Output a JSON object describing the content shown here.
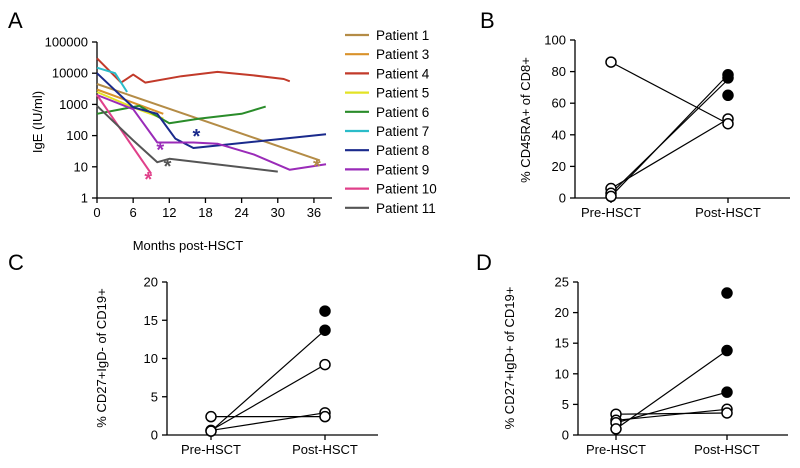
{
  "chart_data": [
    {
      "panel": "A",
      "type": "line",
      "xlabel": "Months post-HSCT",
      "ylabel": "IgE (IU/ml)",
      "yscale": "log",
      "xlim": [
        0,
        39
      ],
      "ylim": [
        1,
        100000
      ],
      "xticks": [
        "0",
        "6",
        "12",
        "18",
        "24",
        "30",
        "36"
      ],
      "yticks": [
        "1",
        "10",
        "100",
        "1000",
        "10000",
        "100000"
      ],
      "legend": "right",
      "series": [
        {
          "name": "Patient 1",
          "color": "#b48c46",
          "x": [
            0,
            37
          ],
          "y": [
            4500,
            16
          ]
        },
        {
          "name": "Patient 3",
          "color": "#d9922b",
          "x": [
            0,
            11
          ],
          "y": [
            3000,
            500
          ]
        },
        {
          "name": "Patient 4",
          "color": "#c23a2a",
          "x": [
            0,
            4,
            6,
            8,
            14,
            20,
            26,
            31,
            32
          ],
          "y": [
            30000,
            5000,
            9000,
            5000,
            8000,
            11000,
            8500,
            6500,
            5500
          ]
        },
        {
          "name": "Patient 5",
          "color": "#e3e325",
          "x": [
            0,
            6,
            11
          ],
          "y": [
            2500,
            800,
            350
          ]
        },
        {
          "name": "Patient 6",
          "color": "#2a8c2a",
          "x": [
            0,
            7,
            12,
            17,
            24,
            28
          ],
          "y": [
            500,
            900,
            250,
            350,
            500,
            850
          ]
        },
        {
          "name": "Patient 7",
          "color": "#2bbcc9",
          "x": [
            0,
            3,
            5
          ],
          "y": [
            15000,
            10000,
            2500
          ]
        },
        {
          "name": "Patient 8",
          "color": "#1a2a8c",
          "x": [
            0,
            6,
            10,
            13,
            16,
            38
          ],
          "y": [
            10000,
            800,
            500,
            80,
            40,
            110
          ]
        },
        {
          "name": "Patient 9",
          "color": "#9a2bb8",
          "x": [
            0,
            6,
            10,
            16,
            20,
            26,
            32,
            38
          ],
          "y": [
            2000,
            700,
            60,
            60,
            55,
            25,
            8,
            12
          ]
        },
        {
          "name": "Patient 10",
          "color": "#e0408a",
          "x": [
            0,
            9
          ],
          "y": [
            2000,
            6
          ]
        },
        {
          "name": "Patient 11",
          "color": "#555555",
          "x": [
            0,
            6,
            10,
            12,
            30
          ],
          "y": [
            900,
            70,
            14,
            18,
            7
          ]
        }
      ],
      "annotations": [
        {
          "text": "*",
          "x": 10.5,
          "y": 45,
          "color": "#9a2bb8"
        },
        {
          "text": "*",
          "x": 16.5,
          "y": 120,
          "color": "#1a2a8c"
        },
        {
          "text": "*",
          "x": 8.5,
          "y": 5,
          "color": "#e0408a"
        },
        {
          "text": "*",
          "x": 11.7,
          "y": 13,
          "color": "#555555"
        },
        {
          "text": "*",
          "x": 36.5,
          "y": 13,
          "color": "#b48c46"
        }
      ]
    },
    {
      "panel": "B",
      "type": "scatter",
      "ylabel": "% CD45RA+ of CD8+",
      "categories": [
        "Pre-HSCT",
        "Post-HSCT"
      ],
      "ylim": [
        0,
        100
      ],
      "yticks": [
        "0",
        "20",
        "40",
        "60",
        "80",
        "100"
      ],
      "paired_lines": [
        [
          86,
          47
        ],
        [
          6,
          50
        ],
        [
          3,
          75
        ],
        [
          1,
          78
        ]
      ],
      "points": [
        {
          "group": 0,
          "value": 86,
          "filled": false
        },
        {
          "group": 0,
          "value": 6,
          "filled": false
        },
        {
          "group": 0,
          "value": 3,
          "filled": false
        },
        {
          "group": 0,
          "value": 1,
          "filled": false
        },
        {
          "group": 1,
          "value": 78,
          "filled": true
        },
        {
          "group": 1,
          "value": 76,
          "filled": true
        },
        {
          "group": 1,
          "value": 65,
          "filled": true
        },
        {
          "group": 1,
          "value": 50,
          "filled": false
        },
        {
          "group": 1,
          "value": 47,
          "filled": false
        }
      ]
    },
    {
      "panel": "C",
      "type": "scatter",
      "ylabel": "% CD27+IgD- of CD19+",
      "categories": [
        "Pre-HSCT",
        "Post-HSCT"
      ],
      "ylim": [
        0,
        20
      ],
      "yticks": [
        "0",
        "5",
        "10",
        "15",
        "20"
      ],
      "paired_lines": [
        [
          2.4,
          2.4
        ],
        [
          0.6,
          2.9
        ],
        [
          0.6,
          9.2
        ],
        [
          0.5,
          13.7
        ]
      ],
      "points": [
        {
          "group": 0,
          "value": 2.4,
          "filled": false
        },
        {
          "group": 0,
          "value": 0.6,
          "filled": false
        },
        {
          "group": 0,
          "value": 0.5,
          "filled": false
        },
        {
          "group": 1,
          "value": 16.2,
          "filled": true
        },
        {
          "group": 1,
          "value": 13.7,
          "filled": true
        },
        {
          "group": 1,
          "value": 9.2,
          "filled": false
        },
        {
          "group": 1,
          "value": 2.9,
          "filled": false
        },
        {
          "group": 1,
          "value": 2.4,
          "filled": false
        }
      ]
    },
    {
      "panel": "D",
      "type": "scatter",
      "ylabel": "% CD27+IgD+ of CD19+",
      "categories": [
        "Pre-HSCT",
        "Post-HSCT"
      ],
      "ylim": [
        0,
        25
      ],
      "yticks": [
        "0",
        "5",
        "10",
        "15",
        "20",
        "25"
      ],
      "paired_lines": [
        [
          3.4,
          3.6
        ],
        [
          2.4,
          4.2
        ],
        [
          2.0,
          7.0
        ],
        [
          1.0,
          13.8
        ]
      ],
      "points": [
        {
          "group": 0,
          "value": 3.4,
          "filled": false
        },
        {
          "group": 0,
          "value": 2.4,
          "filled": false
        },
        {
          "group": 0,
          "value": 2.0,
          "filled": false
        },
        {
          "group": 0,
          "value": 1.0,
          "filled": false
        },
        {
          "group": 1,
          "value": 23.2,
          "filled": true
        },
        {
          "group": 1,
          "value": 13.8,
          "filled": true
        },
        {
          "group": 1,
          "value": 7.0,
          "filled": true
        },
        {
          "group": 1,
          "value": 4.2,
          "filled": false
        },
        {
          "group": 1,
          "value": 3.6,
          "filled": false
        }
      ]
    }
  ]
}
